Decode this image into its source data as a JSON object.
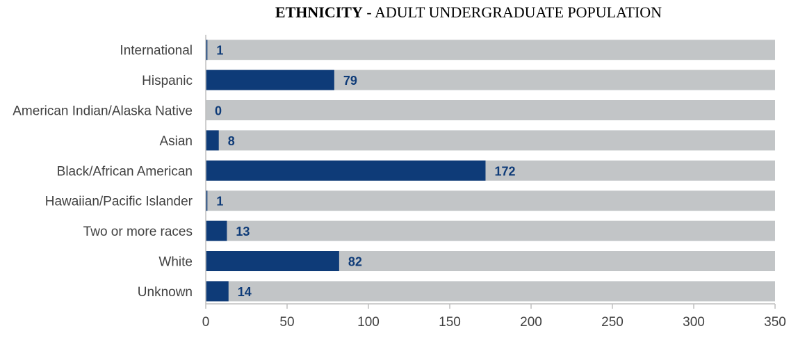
{
  "chart_data": {
    "type": "bar",
    "orientation": "horizontal",
    "title_bold": "ETHNICITY",
    "title_rest": " - ADULT UNDERGRADUATE POPULATION",
    "categories": [
      "International",
      "Hispanic",
      "American Indian/Alaska Native",
      "Asian",
      "Black/African American",
      "Hawaiian/Pacific Islander",
      "Two or more races",
      "White",
      "Unknown"
    ],
    "values": [
      1,
      79,
      0,
      8,
      172,
      1,
      13,
      82,
      14
    ],
    "background_max": 350,
    "xlim": [
      0,
      350
    ],
    "xticks": [
      0,
      50,
      100,
      150,
      200,
      250,
      300,
      350
    ],
    "xlabel": "",
    "ylabel": "",
    "grid": false,
    "colors": {
      "bar": "#0e3b78",
      "background_bar": "#c2c5c7",
      "value_label": "#0e3b78",
      "axis": "#bfbfbf"
    }
  }
}
